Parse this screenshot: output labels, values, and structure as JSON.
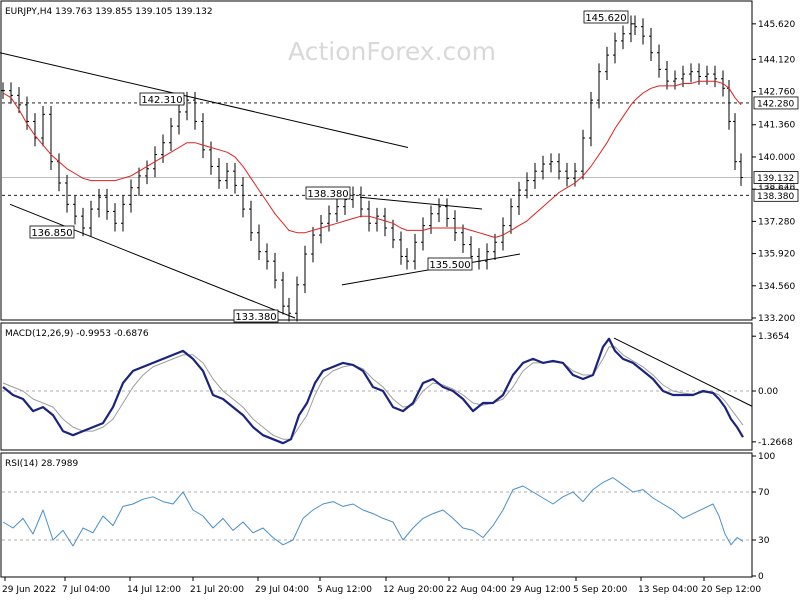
{
  "header": {
    "symbol_line": "EURJPY,H4  139.763 139.855 139.105 139.132",
    "watermark": "ActionForex.com"
  },
  "colors": {
    "price": "#000000",
    "ma": "#e02020",
    "macd": "#1a237e",
    "signal": "#9e9e9e",
    "rsi": "#4a90c8",
    "grid": "#999999",
    "trend": "#000000"
  },
  "chart_data": [
    {
      "type": "line",
      "title": "EURJPY,H4  139.763 139.855 139.105 139.132",
      "ylim": [
        133.2,
        146.5
      ],
      "y_ticks": [
        "145.620",
        "144.120",
        "142.760",
        "141.360",
        "140.000",
        "138.640",
        "137.280",
        "135.920",
        "134.560",
        "133.200"
      ],
      "y_tick_values": [
        145.62,
        144.12,
        142.76,
        141.36,
        140.0,
        138.64,
        137.28,
        135.92,
        134.56,
        133.2
      ],
      "x": [
        0,
        8,
        16,
        24,
        32,
        40,
        48,
        56,
        64,
        72,
        80,
        88,
        96,
        104,
        112,
        120,
        128,
        136,
        144,
        152,
        160,
        168,
        176,
        184,
        192,
        200,
        208,
        216,
        224,
        232,
        240,
        248,
        256,
        264,
        272,
        280,
        286,
        294,
        302,
        310,
        318,
        326,
        334,
        342,
        350,
        358,
        366,
        374,
        382,
        390,
        398,
        404,
        412,
        420,
        428,
        436,
        444,
        452,
        460,
        468,
        476,
        484,
        492,
        500,
        508,
        516,
        524,
        532,
        540,
        548,
        556,
        564,
        572,
        580,
        588,
        596,
        604,
        612,
        620,
        628,
        632,
        640,
        648,
        656,
        664,
        672,
        680,
        688,
        696,
        704,
        712,
        720,
        726,
        732,
        738
      ],
      "series": [
        {
          "name": "",
          "role": "price",
          "values": [
            142.8,
            142.6,
            142.2,
            141.5,
            140.8,
            141.8,
            139.8,
            138.9,
            138.0,
            137.5,
            137.0,
            137.8,
            138.3,
            137.7,
            137.2,
            138.0,
            138.7,
            139.2,
            139.5,
            140.1,
            140.6,
            141.3,
            141.9,
            142.4,
            141.5,
            140.3,
            139.6,
            139.0,
            139.4,
            138.8,
            137.8,
            136.8,
            136.0,
            135.6,
            134.8,
            133.7,
            133.4,
            134.6,
            135.9,
            136.7,
            137.2,
            137.6,
            137.9,
            138.2,
            138.4,
            137.8,
            137.2,
            137.5,
            137.0,
            136.5,
            135.8,
            135.6,
            136.4,
            137.1,
            137.6,
            137.9,
            137.4,
            136.8,
            136.3,
            135.8,
            135.6,
            136.0,
            136.4,
            137.1,
            137.9,
            138.6,
            139.0,
            139.4,
            139.7,
            139.8,
            139.4,
            139.1,
            139.4,
            140.8,
            142.4,
            143.6,
            144.3,
            144.9,
            145.2,
            145.62,
            145.5,
            145.1,
            144.4,
            143.7,
            143.2,
            143.3,
            143.5,
            143.6,
            143.4,
            143.5,
            143.3,
            142.9,
            141.5,
            139.8,
            139.13
          ]
        },
        {
          "name": "",
          "role": "moving-average",
          "values": [
            142.7,
            142.5,
            142.0,
            141.4,
            140.9,
            140.5,
            140.1,
            139.8,
            139.5,
            139.3,
            139.1,
            139.0,
            139.0,
            139.0,
            139.0,
            139.1,
            139.2,
            139.4,
            139.6,
            139.8,
            140.0,
            140.2,
            140.4,
            140.6,
            140.6,
            140.5,
            140.4,
            140.3,
            140.2,
            140.0,
            139.6,
            139.1,
            138.6,
            138.1,
            137.6,
            137.2,
            136.9,
            136.8,
            136.8,
            136.9,
            137.0,
            137.1,
            137.2,
            137.3,
            137.4,
            137.5,
            137.5,
            137.4,
            137.3,
            137.2,
            137.0,
            136.9,
            136.9,
            136.9,
            137.0,
            137.0,
            137.0,
            137.0,
            137.0,
            136.9,
            136.8,
            136.7,
            136.6,
            136.7,
            136.9,
            137.1,
            137.3,
            137.6,
            137.9,
            138.2,
            138.5,
            138.7,
            138.9,
            139.2,
            139.6,
            140.1,
            140.6,
            141.2,
            141.7,
            142.2,
            142.4,
            142.7,
            142.9,
            143.0,
            143.0,
            143.0,
            143.1,
            143.1,
            143.2,
            143.2,
            143.2,
            143.1,
            142.9,
            142.5,
            142.2
          ]
        }
      ],
      "annotations": [
        {
          "label": "145.620",
          "value": 145.62
        },
        {
          "label": "142.310",
          "value": 142.31
        },
        {
          "label": "138.380",
          "value": 138.38
        },
        {
          "label": "136.850",
          "value": 136.85
        },
        {
          "label": "135.500",
          "value": 135.5
        },
        {
          "label": "133.380",
          "value": 133.38
        }
      ],
      "horizontal_lines": [
        {
          "label": "142.280",
          "value": 142.28
        },
        {
          "label": "139.132",
          "value": 139.132
        },
        {
          "label": "138.380",
          "value": 138.38
        }
      ],
      "price_label_overlap_text": "138.640",
      "trendlines": [
        {
          "x": [
            0,
            408
          ],
          "y": [
            144.4,
            140.4
          ]
        },
        {
          "x": [
            10,
            295
          ],
          "y": [
            138.0,
            133.2
          ]
        },
        {
          "x": [
            360,
            482
          ],
          "y": [
            138.3,
            137.8
          ]
        },
        {
          "x": [
            342,
            520
          ],
          "y": [
            134.6,
            135.9
          ]
        }
      ]
    },
    {
      "type": "line",
      "title": "MACD(12,26,9) -0.9953 -0.6876",
      "ylim": [
        -1.42,
        1.52
      ],
      "y_ticks": [
        "1.3654",
        "0.00",
        "-1.2668"
      ],
      "y_tick_values": [
        1.3654,
        0.0,
        -1.2668
      ],
      "x": [
        0,
        10,
        20,
        30,
        40,
        50,
        60,
        70,
        80,
        90,
        100,
        110,
        120,
        130,
        140,
        150,
        160,
        170,
        180,
        190,
        200,
        210,
        220,
        230,
        240,
        250,
        260,
        270,
        280,
        288,
        296,
        304,
        312,
        320,
        330,
        340,
        350,
        360,
        370,
        380,
        390,
        400,
        410,
        420,
        430,
        440,
        450,
        460,
        470,
        480,
        490,
        500,
        510,
        520,
        530,
        540,
        550,
        560,
        570,
        580,
        590,
        600,
        606,
        612,
        620,
        630,
        640,
        650,
        660,
        670,
        680,
        690,
        700,
        710,
        716,
        722,
        728,
        734,
        740
      ],
      "series": [
        {
          "name": "",
          "role": "macd",
          "values": [
            0.1,
            -0.1,
            -0.2,
            -0.5,
            -0.4,
            -0.6,
            -1.0,
            -1.1,
            -1.0,
            -0.9,
            -0.8,
            -0.4,
            0.2,
            0.5,
            0.6,
            0.7,
            0.8,
            0.9,
            1.0,
            0.8,
            0.5,
            -0.1,
            -0.2,
            -0.4,
            -0.6,
            -0.9,
            -1.1,
            -1.2,
            -1.3,
            -1.2,
            -0.6,
            -0.3,
            0.2,
            0.5,
            0.6,
            0.7,
            0.65,
            0.5,
            0.1,
            0.0,
            -0.4,
            -0.5,
            -0.3,
            0.2,
            0.3,
            0.1,
            0.0,
            -0.2,
            -0.5,
            -0.3,
            -0.3,
            -0.1,
            0.4,
            0.7,
            0.8,
            0.7,
            0.75,
            0.7,
            0.4,
            0.3,
            0.4,
            1.1,
            1.3,
            1.0,
            0.8,
            0.7,
            0.5,
            0.3,
            0.0,
            -0.1,
            -0.1,
            -0.1,
            0.0,
            -0.05,
            -0.2,
            -0.4,
            -0.7,
            -0.9,
            -1.15
          ]
        },
        {
          "name": "",
          "role": "signal",
          "values": [
            0.2,
            0.1,
            0.0,
            -0.2,
            -0.3,
            -0.4,
            -0.7,
            -0.9,
            -1.0,
            -1.0,
            -0.9,
            -0.7,
            -0.3,
            0.1,
            0.4,
            0.6,
            0.7,
            0.8,
            0.9,
            0.9,
            0.7,
            0.3,
            0.0,
            -0.2,
            -0.4,
            -0.7,
            -0.9,
            -1.1,
            -1.2,
            -1.2,
            -0.9,
            -0.6,
            -0.1,
            0.3,
            0.5,
            0.6,
            0.65,
            0.55,
            0.3,
            0.1,
            -0.2,
            -0.4,
            -0.35,
            0.0,
            0.2,
            0.15,
            0.05,
            -0.1,
            -0.3,
            -0.35,
            -0.3,
            -0.2,
            0.1,
            0.5,
            0.7,
            0.7,
            0.72,
            0.7,
            0.5,
            0.4,
            0.4,
            0.8,
            1.1,
            1.1,
            0.9,
            0.75,
            0.6,
            0.4,
            0.15,
            0.0,
            -0.05,
            -0.08,
            -0.03,
            -0.03,
            -0.1,
            -0.25,
            -0.45,
            -0.65,
            -0.85
          ]
        }
      ],
      "trendlines": [
        {
          "x": [
            614,
            752
          ],
          "y": [
            1.32,
            -0.38
          ]
        }
      ]
    },
    {
      "type": "line",
      "title": "RSI(14) 28.7989",
      "ylim": [
        0,
        100
      ],
      "y_ticks": [
        "100",
        "70",
        "30",
        "0"
      ],
      "y_tick_values": [
        100,
        70,
        30,
        0
      ],
      "grid_levels": [
        70,
        30
      ],
      "x": [
        0,
        10,
        20,
        30,
        40,
        50,
        60,
        70,
        80,
        90,
        100,
        110,
        120,
        130,
        140,
        150,
        160,
        170,
        180,
        190,
        200,
        210,
        220,
        230,
        240,
        250,
        260,
        270,
        280,
        290,
        300,
        310,
        320,
        330,
        340,
        350,
        360,
        370,
        380,
        390,
        400,
        410,
        420,
        430,
        440,
        450,
        460,
        470,
        480,
        490,
        500,
        510,
        520,
        530,
        540,
        550,
        560,
        570,
        580,
        590,
        600,
        610,
        620,
        630,
        640,
        650,
        660,
        670,
        680,
        690,
        700,
        710,
        716,
        722,
        728,
        734,
        740
      ],
      "series": [
        {
          "name": "",
          "role": "rsi",
          "values": [
            45,
            40,
            48,
            35,
            55,
            30,
            38,
            25,
            40,
            36,
            50,
            42,
            58,
            60,
            64,
            66,
            62,
            60,
            70,
            55,
            50,
            40,
            48,
            38,
            45,
            36,
            40,
            32,
            26,
            30,
            48,
            55,
            60,
            62,
            58,
            60,
            55,
            52,
            48,
            45,
            30,
            40,
            48,
            52,
            55,
            48,
            40,
            38,
            32,
            42,
            55,
            72,
            75,
            70,
            65,
            60,
            66,
            70,
            62,
            72,
            78,
            82,
            76,
            70,
            72,
            65,
            60,
            55,
            48,
            52,
            56,
            60,
            50,
            35,
            26,
            32,
            28.8
          ]
        }
      ]
    }
  ],
  "x_axis": {
    "tick_labels": [
      "29 Jun 2022",
      "7 Jul 04:00",
      "14 Jul 12:00",
      "21 Jul 20:00",
      "29 Jul 04:00",
      "5 Aug 12:00",
      "12 Aug 20:00",
      "22 Aug 04:00",
      "29 Aug 12:00",
      "5 Sep 20:00",
      "13 Sep 04:00",
      "20 Sep 12:00"
    ],
    "tick_x": [
      5,
      65,
      130,
      193,
      258,
      320,
      386,
      449,
      513,
      576,
      641,
      704
    ]
  }
}
